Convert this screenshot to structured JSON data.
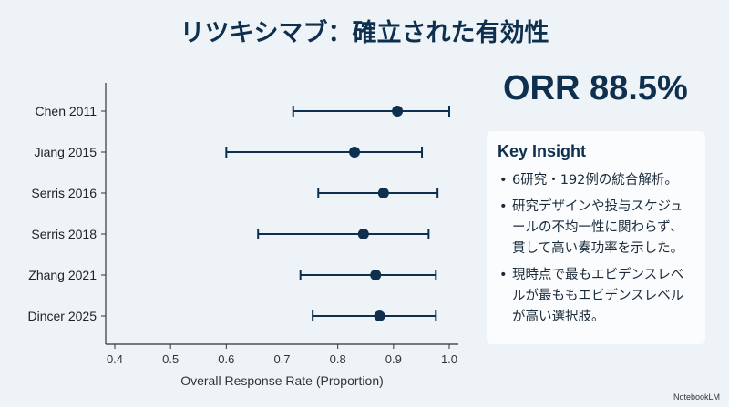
{
  "title": "リツキシマブ：確立された有効性",
  "headline_metric": "ORR 88.5%",
  "insight": {
    "heading": "Key Insight",
    "bullets": [
      "6研究・192例の統合解析。",
      "研究デザインや投与スケジュールの不均一性に関わらず、貫して高い奏功率を示した。",
      "現時点で最もエビデンスレベルが最ももエビデンスレベルが高い選択肢。"
    ]
  },
  "brand": "NotebookLM",
  "colors": {
    "mark": "#0f2f4e",
    "background": "#eef3f8"
  },
  "chart_data": {
    "type": "forest",
    "xlabel": "Overall Response Rate (Proportion)",
    "xlim": [
      0.39,
      1.005
    ],
    "xticks": [
      0.4,
      0.5,
      0.6,
      0.7,
      0.8,
      0.9,
      1.0
    ],
    "xtick_labels": [
      "0.4",
      "0.5",
      "0.6",
      "0.7",
      "0.8",
      "0.9",
      "1.0"
    ],
    "grid": false,
    "studies": [
      {
        "label": "Chen 2011",
        "estimate": 0.907,
        "lower": 0.72,
        "upper": 1.0
      },
      {
        "label": "Jiang 2015",
        "estimate": 0.83,
        "lower": 0.6,
        "upper": 0.951
      },
      {
        "label": "Serris 2016",
        "estimate": 0.882,
        "lower": 0.765,
        "upper": 0.979
      },
      {
        "label": "Serris 2018",
        "estimate": 0.846,
        "lower": 0.657,
        "upper": 0.963
      },
      {
        "label": "Zhang 2021",
        "estimate": 0.868,
        "lower": 0.733,
        "upper": 0.976
      },
      {
        "label": "Dincer 2025",
        "estimate": 0.875,
        "lower": 0.755,
        "upper": 0.976
      }
    ]
  }
}
